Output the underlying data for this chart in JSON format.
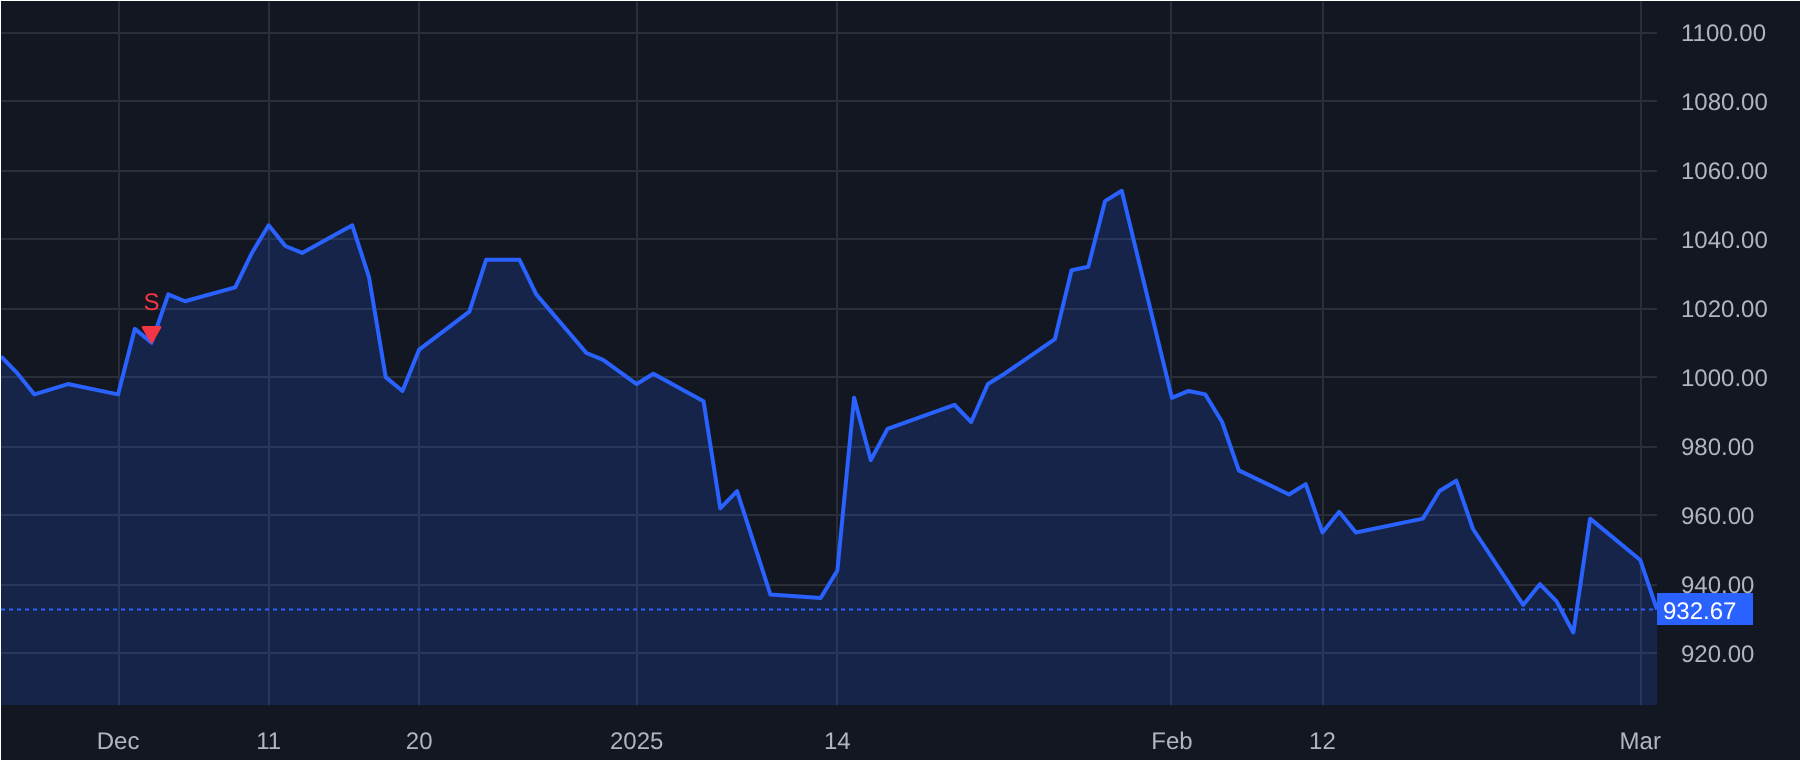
{
  "chart_data": {
    "type": "area",
    "x": [
      "2024-11-25",
      "2024-11-26",
      "2024-11-27",
      "2024-11-29",
      "2024-12-02",
      "2024-12-03",
      "2024-12-04",
      "2024-12-05",
      "2024-12-06",
      "2024-12-09",
      "2024-12-10",
      "2024-12-11",
      "2024-12-12",
      "2024-12-13",
      "2024-12-16",
      "2024-12-17",
      "2024-12-18",
      "2024-12-19",
      "2024-12-20",
      "2024-12-23",
      "2024-12-24",
      "2024-12-26",
      "2024-12-27",
      "2024-12-30",
      "2024-12-31",
      "2025-01-02",
      "2025-01-03",
      "2025-01-06",
      "2025-01-07",
      "2025-01-08",
      "2025-01-10",
      "2025-01-13",
      "2025-01-14",
      "2025-01-15",
      "2025-01-16",
      "2025-01-17",
      "2025-01-21",
      "2025-01-22",
      "2025-01-23",
      "2025-01-24",
      "2025-01-27",
      "2025-01-28",
      "2025-01-29",
      "2025-01-30",
      "2025-01-31",
      "2025-02-03",
      "2025-02-04",
      "2025-02-05",
      "2025-02-06",
      "2025-02-07",
      "2025-02-10",
      "2025-02-11",
      "2025-02-12",
      "2025-02-13",
      "2025-02-14",
      "2025-02-18",
      "2025-02-19",
      "2025-02-20",
      "2025-02-21",
      "2025-02-24",
      "2025-02-25",
      "2025-02-26",
      "2025-02-27",
      "2025-02-28",
      "2025-03-03",
      "2025-03-04"
    ],
    "series": [
      {
        "color": "#2962ff",
        "values": [
          1006,
          1001,
          995,
          998,
          995,
          1014,
          1010,
          1024,
          1022,
          1026,
          1036,
          1044,
          1038,
          1036,
          1044,
          1029,
          1000,
          996,
          1008,
          1019,
          1034,
          1034,
          1024,
          1007,
          1005,
          998,
          1001,
          993,
          962,
          967,
          937,
          936,
          944,
          994,
          976,
          985,
          992,
          987,
          998,
          1001,
          1011,
          1031,
          1032,
          1051,
          1054,
          994,
          996,
          995,
          987,
          973,
          966,
          969,
          955,
          961,
          955,
          959,
          967,
          970,
          956,
          934,
          940,
          935,
          926,
          959,
          947,
          932.67
        ]
      }
    ],
    "xlim": [
      "2024-11-25",
      "2025-03-04"
    ],
    "xticks": [
      {
        "value": "2024-12-02",
        "label": "Dec"
      },
      {
        "value": "2024-12-11",
        "label": "11"
      },
      {
        "value": "2024-12-20",
        "label": "20"
      },
      {
        "value": "2025-01-02",
        "label": "2025"
      },
      {
        "value": "2025-01-14",
        "label": "14"
      },
      {
        "value": "2025-02-03",
        "label": "Feb"
      },
      {
        "value": "2025-02-12",
        "label": "12"
      },
      {
        "value": "2025-03-03",
        "label": "Mar"
      }
    ],
    "ylim": [
      905,
      1109
    ],
    "yticks": [
      {
        "value": 920,
        "label": "920.00"
      },
      {
        "value": 940,
        "label": "940.00"
      },
      {
        "value": 960,
        "label": "960.00"
      },
      {
        "value": 980,
        "label": "980.00"
      },
      {
        "value": 1000,
        "label": "1000.00"
      },
      {
        "value": 1020,
        "label": "1020.00"
      },
      {
        "value": 1040,
        "label": "1040.00"
      },
      {
        "value": 1060,
        "label": "1060.00"
      },
      {
        "value": 1080,
        "label": "1080.00"
      },
      {
        "value": 1100,
        "label": "1100.00"
      }
    ],
    "ref_lines": [
      {
        "axis": "y",
        "value": 932.67,
        "label": "932.67",
        "color": "#2962ff",
        "line_style": "dotted"
      }
    ],
    "annotations": [
      {
        "text": "S",
        "x": "2024-12-04",
        "y": 1013
      }
    ],
    "grid": true
  }
}
